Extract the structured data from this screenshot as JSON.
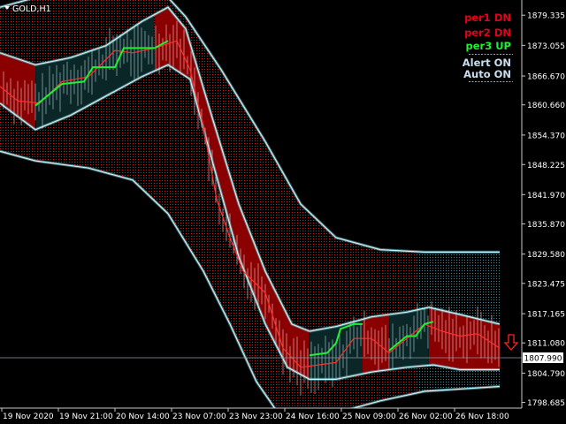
{
  "window": {
    "symbol_label": "GOLD,H1",
    "menu_arrow_icon": "triangle-down-icon"
  },
  "status_panel": {
    "items": [
      {
        "label": "per1 DN",
        "color": "#e5001a"
      },
      {
        "label": "per2 DN",
        "color": "#e5001a"
      },
      {
        "label": "per3 UP",
        "color": "#22ee33"
      },
      {
        "label": "Alert ON",
        "color": "#c9ddee"
      },
      {
        "label": "Auto ON",
        "color": "#c9ddee"
      }
    ]
  },
  "current_price": {
    "label": "1807.990",
    "value": 1807.99
  },
  "signal_icon": "arrow-down-outline-icon",
  "colors": {
    "background": "#000000",
    "bear_zone": "#8a0000",
    "bull_zone": "#0b2626",
    "band_line": "#e8e8e8",
    "band_glow": "#56c8d8",
    "price_line": "#ff3030",
    "trend_up": "#22ee33",
    "grid_dots_bear": "#c81818",
    "grid_dots_bull": "#3a8a99",
    "axis_text": "#ffffff",
    "price_box_bg": "#ffffff"
  },
  "chart_data": {
    "type": "candlestick",
    "title": "",
    "symbol": "GOLD",
    "timeframe": "H1",
    "y_axis": {
      "range": [
        1797.5,
        1882.5
      ],
      "tick_labels": [
        "1879.335",
        "1873.055",
        "1866.670",
        "1860.660",
        "1854.370",
        "1848.225",
        "1841.970",
        "1835.870",
        "1829.580",
        "1823.475",
        "1817.165",
        "1811.080",
        "1804.790",
        "1798.685"
      ],
      "tick_values": [
        1879.335,
        1873.055,
        1866.67,
        1860.66,
        1854.37,
        1848.225,
        1841.97,
        1835.87,
        1829.58,
        1823.475,
        1817.165,
        1811.08,
        1804.79,
        1798.685
      ]
    },
    "x_axis": {
      "tick_labels": [
        "19 Nov 2020",
        "19 Nov 21:00",
        "20 Nov 14:00",
        "23 Nov 07:00",
        "23 Nov 23:00",
        "24 Nov 16:00",
        "25 Nov 09:00",
        "26 Nov 02:00",
        "26 Nov 18:00"
      ]
    },
    "price_path": [
      [
        0,
        1864.5
      ],
      [
        20,
        1861.5
      ],
      [
        45,
        1861.0
      ],
      [
        70,
        1865.5
      ],
      [
        100,
        1866.5
      ],
      [
        130,
        1872.0
      ],
      [
        150,
        1871.5
      ],
      [
        175,
        1872.5
      ],
      [
        200,
        1874.0
      ],
      [
        215,
        1868.0
      ],
      [
        230,
        1856.0
      ],
      [
        245,
        1841.0
      ],
      [
        260,
        1833.0
      ],
      [
        275,
        1826.0
      ],
      [
        300,
        1821.5
      ],
      [
        320,
        1810.0
      ],
      [
        340,
        1806.0
      ],
      [
        360,
        1806.5
      ],
      [
        380,
        1807.0
      ],
      [
        400,
        1812.0
      ],
      [
        420,
        1812.0
      ],
      [
        440,
        1809.0
      ],
      [
        460,
        1812.0
      ],
      [
        480,
        1815.0
      ],
      [
        500,
        1813.5
      ],
      [
        520,
        1812.5
      ],
      [
        540,
        1813.0
      ],
      [
        565,
        1810.0
      ]
    ],
    "trend_up_segments": [
      [
        [
          40,
          1860.5
        ],
        [
          60,
          1863.5
        ],
        [
          70,
          1865.0
        ],
        [
          95,
          1865.5
        ],
        [
          105,
          1868.5
        ],
        [
          130,
          1868.5
        ],
        [
          140,
          1872.5
        ],
        [
          175,
          1872.5
        ],
        [
          190,
          1874.0
        ]
      ],
      [
        [
          350,
          1808.5
        ],
        [
          370,
          1809.0
        ],
        [
          380,
          1811.0
        ],
        [
          385,
          1814.0
        ],
        [
          400,
          1815.0
        ],
        [
          410,
          1815.0
        ]
      ],
      [
        [
          440,
          1809.5
        ],
        [
          460,
          1812.5
        ],
        [
          470,
          1812.5
        ],
        [
          480,
          1815.0
        ],
        [
          490,
          1815.5
        ]
      ]
    ],
    "zones": [
      {
        "from": 0,
        "to": 40,
        "kind": "bear"
      },
      {
        "from": 40,
        "to": 175,
        "kind": "bull"
      },
      {
        "from": 175,
        "to": 350,
        "kind": "bear"
      },
      {
        "from": 350,
        "to": 410,
        "kind": "bull"
      },
      {
        "from": 410,
        "to": 440,
        "kind": "bear"
      },
      {
        "from": 440,
        "to": 485,
        "kind": "bull"
      },
      {
        "from": 485,
        "to": 565,
        "kind": "bear"
      }
    ],
    "inner_band": {
      "upper": [
        [
          0,
          1871.5
        ],
        [
          40,
          1869.0
        ],
        [
          80,
          1870.5
        ],
        [
          120,
          1873.0
        ],
        [
          160,
          1878.0
        ],
        [
          190,
          1881.0
        ],
        [
          210,
          1876.5
        ],
        [
          240,
          1858.0
        ],
        [
          270,
          1840.0
        ],
        [
          300,
          1826.0
        ],
        [
          330,
          1815.0
        ],
        [
          350,
          1813.5
        ],
        [
          380,
          1814.5
        ],
        [
          420,
          1816.5
        ],
        [
          460,
          1817.5
        ],
        [
          485,
          1818.5
        ],
        [
          520,
          1817.0
        ],
        [
          565,
          1815.0
        ]
      ],
      "lower": [
        [
          0,
          1861.0
        ],
        [
          40,
          1855.5
        ],
        [
          80,
          1858.5
        ],
        [
          120,
          1862.5
        ],
        [
          160,
          1866.5
        ],
        [
          190,
          1869.0
        ],
        [
          215,
          1866.0
        ],
        [
          240,
          1849.0
        ],
        [
          270,
          1829.0
        ],
        [
          300,
          1815.0
        ],
        [
          325,
          1806.0
        ],
        [
          350,
          1803.5
        ],
        [
          380,
          1803.5
        ],
        [
          420,
          1805.0
        ],
        [
          460,
          1806.0
        ],
        [
          490,
          1806.5
        ],
        [
          520,
          1805.5
        ],
        [
          565,
          1805.5
        ]
      ]
    },
    "outer_band": {
      "upper": [
        [
          0,
          1881.0
        ],
        [
          40,
          1883.0
        ],
        [
          100,
          1883.0
        ],
        [
          150,
          1884.0
        ],
        [
          180,
          1885.0
        ],
        [
          210,
          1879.0
        ],
        [
          250,
          1868.0
        ],
        [
          300,
          1853.0
        ],
        [
          340,
          1840.0
        ],
        [
          380,
          1833.0
        ],
        [
          430,
          1830.5
        ],
        [
          480,
          1830.0
        ],
        [
          565,
          1830.0
        ]
      ],
      "lower": [
        [
          0,
          1851.0
        ],
        [
          40,
          1849.0
        ],
        [
          100,
          1847.5
        ],
        [
          150,
          1845.0
        ],
        [
          190,
          1838.0
        ],
        [
          230,
          1826.0
        ],
        [
          260,
          1815.0
        ],
        [
          290,
          1803.0
        ],
        [
          320,
          1795.0
        ],
        [
          350,
          1794.5
        ],
        [
          380,
          1796.5
        ],
        [
          430,
          1799.0
        ],
        [
          480,
          1801.0
        ],
        [
          565,
          1802.0
        ]
      ]
    }
  }
}
